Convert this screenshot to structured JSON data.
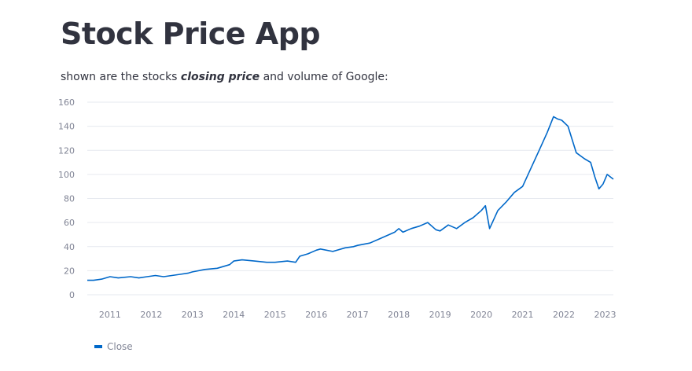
{
  "page": {
    "title": "Stock Price App",
    "caption_before": "shown are the stocks ",
    "caption_emphasis": "closing price",
    "caption_after": " and volume of Google:"
  },
  "colors": {
    "line": "#0068c9",
    "grid": "#e6e9ef",
    "text": "#31333f",
    "axis_text": "#808495"
  },
  "chart_data": {
    "type": "line",
    "title": "",
    "xlabel": "",
    "ylabel": "",
    "ylim": [
      0,
      160
    ],
    "xlim": [
      2010.45,
      2023.2
    ],
    "grid": "horizontal",
    "legend_position": "bottom-left",
    "y_ticks": [
      0,
      20,
      40,
      60,
      80,
      100,
      120,
      140,
      160
    ],
    "x_ticks": [
      "2011",
      "2012",
      "2013",
      "2014",
      "2015",
      "2016",
      "2017",
      "2018",
      "2019",
      "2020",
      "2021",
      "2022",
      "2023"
    ],
    "series": [
      {
        "name": "Close",
        "x": [
          2010.45,
          2010.6,
          2010.8,
          2011.0,
          2011.2,
          2011.5,
          2011.7,
          2011.9,
          2012.1,
          2012.3,
          2012.5,
          2012.7,
          2012.9,
          2013.0,
          2013.3,
          2013.6,
          2013.9,
          2014.0,
          2014.2,
          2014.5,
          2014.8,
          2015.0,
          2015.3,
          2015.5,
          2015.6,
          2015.8,
          2016.0,
          2016.1,
          2016.4,
          2016.7,
          2016.9,
          2017.0,
          2017.3,
          2017.5,
          2017.7,
          2017.9,
          2018.0,
          2018.1,
          2018.3,
          2018.5,
          2018.7,
          2018.9,
          2019.0,
          2019.2,
          2019.4,
          2019.6,
          2019.8,
          2020.0,
          2020.1,
          2020.2,
          2020.4,
          2020.6,
          2020.8,
          2021.0,
          2021.2,
          2021.4,
          2021.6,
          2021.75,
          2021.85,
          2021.95,
          2022.1,
          2022.3,
          2022.5,
          2022.65,
          2022.75,
          2022.85,
          2022.95,
          2023.05,
          2023.2
        ],
        "values": [
          12,
          12,
          13,
          15,
          14,
          15,
          14,
          15,
          16,
          15,
          16,
          17,
          18,
          19,
          21,
          22,
          25,
          28,
          29,
          28,
          27,
          27,
          28,
          27,
          32,
          34,
          37,
          38,
          36,
          39,
          40,
          41,
          43,
          46,
          49,
          52,
          55,
          52,
          55,
          57,
          60,
          54,
          53,
          58,
          55,
          60,
          64,
          70,
          74,
          55,
          70,
          77,
          85,
          90,
          105,
          120,
          135,
          148,
          146,
          145,
          140,
          118,
          113,
          110,
          98,
          88,
          92,
          100,
          96
        ]
      }
    ]
  },
  "legend": {
    "label": "Close"
  }
}
